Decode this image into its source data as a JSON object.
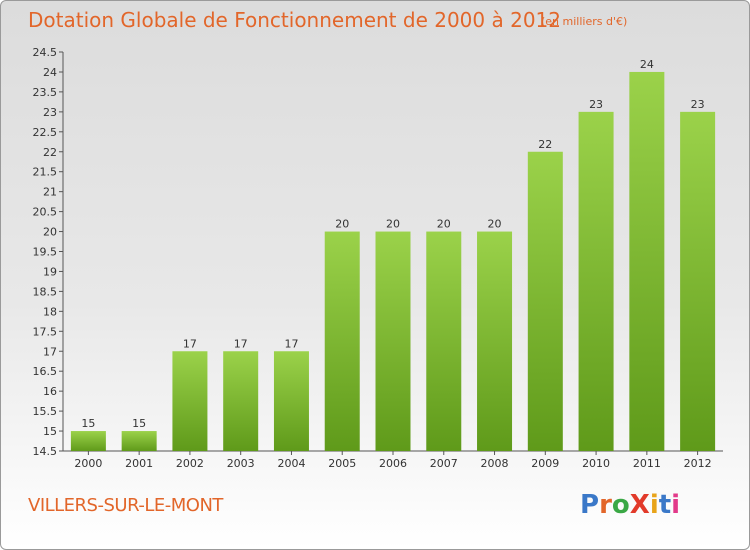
{
  "header": {
    "title": "Dotation Globale de Fonctionnement de 2000 à 2012",
    "unit": "(en milliers d'€)"
  },
  "footer": {
    "commune": "VILLERS-SUR-LE-MONT",
    "logo": "ProXiti"
  },
  "colors": {
    "title": "#e2662a",
    "bar_light": "#9bd24a",
    "bar_dark": "#5f9a1a",
    "logo_letters": [
      "#3a78c8",
      "#e2662a",
      "#3aa845",
      "#e23a2a",
      "#e8a41a",
      "#3a78c8",
      "#e23a8a"
    ]
  },
  "chart_data": {
    "type": "bar",
    "title": "Dotation Globale de Fonctionnement de 2000 à 2012",
    "subtitle": "(en milliers d'€)",
    "xlabel": "",
    "ylabel": "",
    "categories": [
      "2000",
      "2001",
      "2002",
      "2003",
      "2004",
      "2005",
      "2006",
      "2007",
      "2008",
      "2009",
      "2010",
      "2011",
      "2012"
    ],
    "values": [
      15,
      15,
      17,
      17,
      17,
      20,
      20,
      20,
      20,
      22,
      23,
      24,
      23
    ],
    "data_labels": [
      "15",
      "15",
      "17",
      "17",
      "17",
      "20",
      "20",
      "20",
      "20",
      "22",
      "23",
      "24",
      "23"
    ],
    "ylim": [
      14.5,
      24.5
    ],
    "yticks": [
      "14.5",
      "15",
      "15.5",
      "16",
      "16.5",
      "17",
      "17.5",
      "18",
      "18.5",
      "19",
      "19.5",
      "20",
      "20.5",
      "21",
      "21.5",
      "22",
      "22.5",
      "23",
      "23.5",
      "24",
      "24.5"
    ],
    "grid": false,
    "legend": "none"
  }
}
